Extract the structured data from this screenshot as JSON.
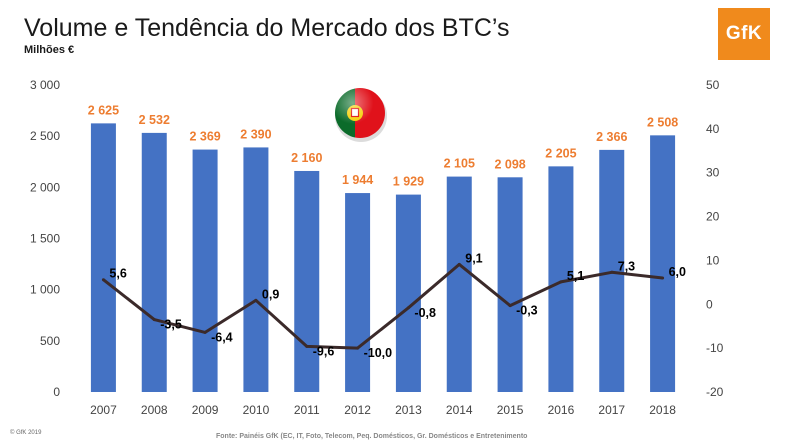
{
  "header": {
    "title": "Volume e Tendência do Mercado dos BTC’s",
    "subtitle": "Milhões €",
    "logo_text": "GfK"
  },
  "footer": {
    "copyright": "© GfK 2019",
    "source": "Fonte: Painéis GfK (EC, IT, Foto, Telecom, Peq. Domésticos, Gr. Domésticos e Entretenimento"
  },
  "flag_icon": "portugal-flag-icon",
  "colors": {
    "bar": "#4472c4",
    "bar_label": "#ed7d31",
    "line": "#3b2a2a",
    "logo": "#f08a1c"
  },
  "chart_data": {
    "type": "bar",
    "categories": [
      "2007",
      "2008",
      "2009",
      "2010",
      "2011",
      "2012",
      "2013",
      "2014",
      "2015",
      "2016",
      "2017",
      "2018"
    ],
    "series": [
      {
        "type": "bar",
        "axis": "left",
        "values": [
          2625,
          2532,
          2369,
          2390,
          2160,
          1944,
          1929,
          2105,
          2098,
          2205,
          2366,
          2508
        ],
        "labels": [
          "2 625",
          "2 532",
          "2 369",
          "2 390",
          "2 160",
          "1 944",
          "1 929",
          "2 105",
          "2 098",
          "2 205",
          "2 366",
          "2 508"
        ]
      },
      {
        "type": "line",
        "axis": "right",
        "values": [
          5.6,
          -3.5,
          -6.4,
          0.9,
          -9.6,
          -10.0,
          -0.8,
          9.1,
          -0.3,
          5.1,
          7.3,
          6.0
        ],
        "labels": [
          "5,6",
          "-3,5",
          "-6,4",
          "0,9",
          "-9,6",
          "-10,0",
          "-0,8",
          "9,1",
          "-0,3",
          "5,1",
          "7,3",
          "6,0"
        ]
      }
    ],
    "y_left": {
      "range": [
        0,
        3000
      ],
      "ticks": [
        0,
        500,
        1000,
        1500,
        2000,
        2500,
        3000
      ],
      "tick_labels": [
        "0",
        "500",
        "1 000",
        "1 500",
        "2 000",
        "2 500",
        "3 000"
      ]
    },
    "y_right": {
      "range": [
        -20,
        50
      ],
      "ticks": [
        -20,
        -10,
        0,
        10,
        20,
        30,
        40,
        50
      ],
      "tick_labels": [
        "-20",
        "-10",
        "0",
        "10",
        "20",
        "30",
        "40",
        "50"
      ]
    },
    "title": "Volume e Tendência do Mercado dos BTC’s",
    "ylabel": "Milhões €",
    "grid": false,
    "legend": "none"
  }
}
